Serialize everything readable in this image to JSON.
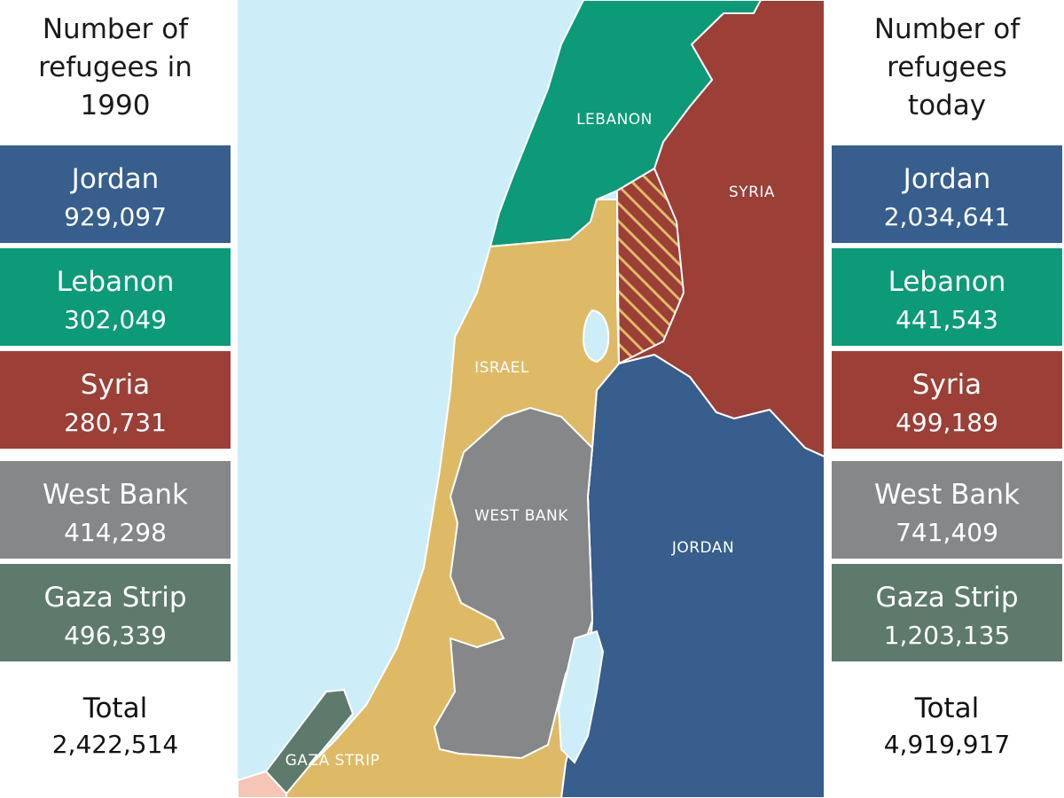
{
  "left_panel": {
    "title_lines": [
      "Number of",
      "refugees in",
      "1990"
    ],
    "rows": [
      {
        "name": "Jordan",
        "value": "929,097"
      },
      {
        "name": "Lebanon",
        "value": "302,049"
      },
      {
        "name": "Syria",
        "value": "280,731"
      },
      {
        "name": "West Bank",
        "value": "414,298"
      },
      {
        "name": "Gaza Strip",
        "value": "496,339"
      }
    ],
    "total": {
      "name": "Total",
      "value": "2,422,514"
    }
  },
  "right_panel": {
    "title_lines": [
      "Number of",
      "refugees",
      "today"
    ],
    "rows": [
      {
        "name": "Jordan",
        "value": "2,034,641"
      },
      {
        "name": "Lebanon",
        "value": "441,543"
      },
      {
        "name": "Syria",
        "value": "499,189"
      },
      {
        "name": "West Bank",
        "value": "741,409"
      },
      {
        "name": "Gaza Strip",
        "value": "1,203,135"
      }
    ],
    "total": {
      "name": "Total",
      "value": "4,919,917"
    }
  },
  "map": {
    "labels": {
      "lebanon": "LEBANON",
      "syria": "SYRIA",
      "israel": "ISRAEL",
      "west_bank": "WEST BANK",
      "jordan": "JORDAN",
      "gaza_strip": "GAZA STRIP"
    }
  },
  "colors": {
    "jordan": "#375e8c",
    "lebanon": "#0c9a79",
    "syria": "#9b3f37",
    "west_bank": "#858789",
    "gaza_strip": "#5e7a6c",
    "israel": "#dfba66",
    "sea": "#cdeef9",
    "egypt": "#f5c6b5"
  }
}
